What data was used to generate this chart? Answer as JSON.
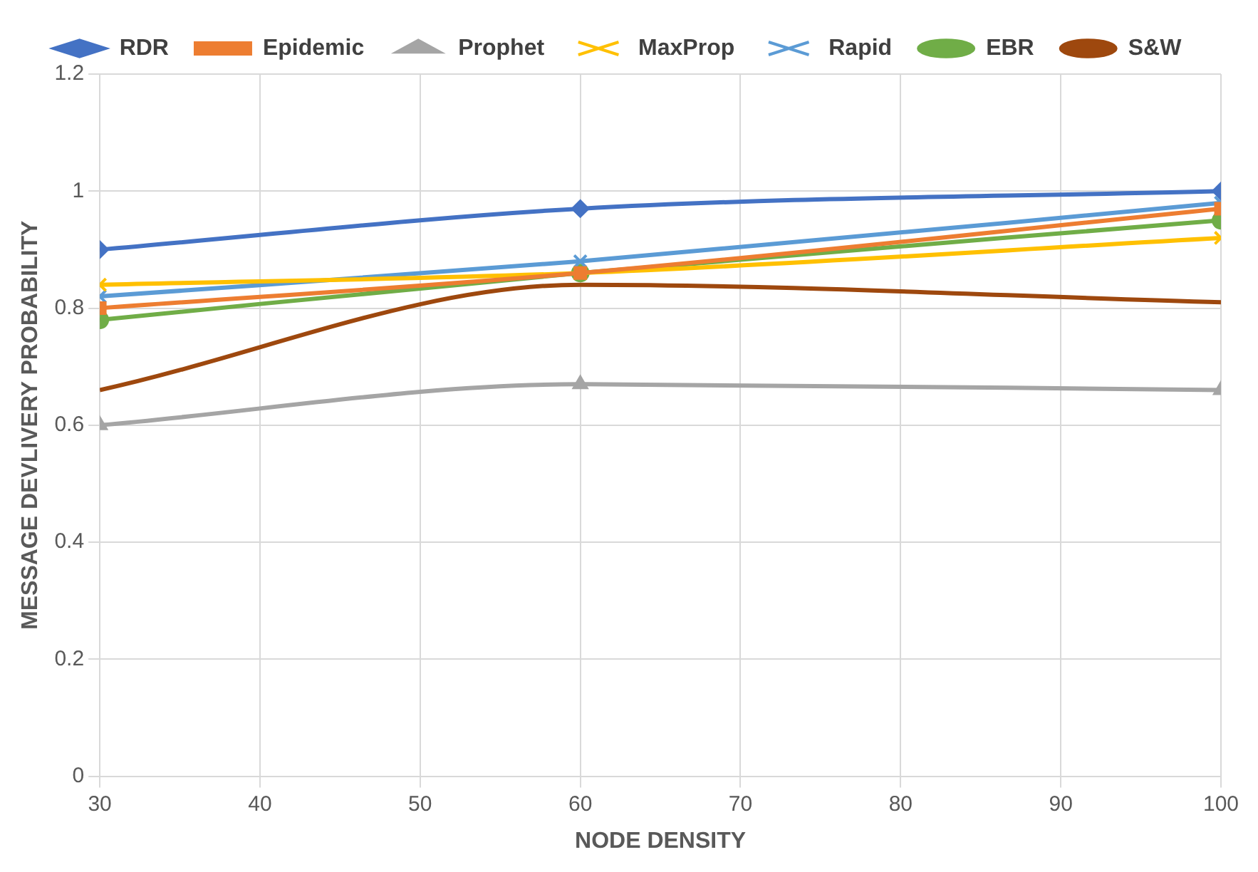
{
  "chart_data": {
    "type": "line",
    "xlabel": "NODE DENSITY",
    "ylabel": "MESSAGE DEVLIVERY PROBABILITY",
    "xlim": [
      30,
      100
    ],
    "xticks": [
      30,
      40,
      50,
      60,
      70,
      80,
      90,
      100
    ],
    "ylim": [
      0,
      1.2
    ],
    "yticks": [
      0,
      0.2,
      0.4,
      0.6,
      0.8,
      1,
      1.2
    ],
    "grid": true,
    "legend": "top",
    "series": [
      {
        "name": "RDR",
        "color": "#4472c4",
        "marker": "diamond",
        "x": [
          30,
          60,
          100
        ],
        "values": [
          0.9,
          0.97,
          1.0
        ]
      },
      {
        "name": "Epidemic",
        "color": "#ed7d31",
        "marker": "square",
        "x": [
          30,
          60,
          100
        ],
        "values": [
          0.8,
          0.86,
          0.97
        ]
      },
      {
        "name": "Prophet",
        "color": "#a5a5a5",
        "marker": "triangle",
        "x": [
          30,
          60,
          100
        ],
        "values": [
          0.6,
          0.67,
          0.66
        ]
      },
      {
        "name": "MaxProp",
        "color": "#ffc000",
        "marker": "cross",
        "x": [
          30,
          60,
          100
        ],
        "values": [
          0.84,
          0.86,
          0.92
        ]
      },
      {
        "name": "Rapid",
        "color": "#5b9bd5",
        "marker": "cross",
        "x": [
          30,
          60,
          100
        ],
        "values": [
          0.82,
          0.88,
          0.98
        ]
      },
      {
        "name": "EBR",
        "color": "#70ad47",
        "marker": "circle",
        "x": [
          30,
          60,
          100
        ],
        "values": [
          0.78,
          0.86,
          0.95
        ]
      },
      {
        "name": "S&W",
        "color": "#9e480e",
        "marker": "none",
        "x": [
          30,
          60,
          100
        ],
        "values": [
          0.66,
          0.84,
          0.81
        ]
      }
    ]
  }
}
